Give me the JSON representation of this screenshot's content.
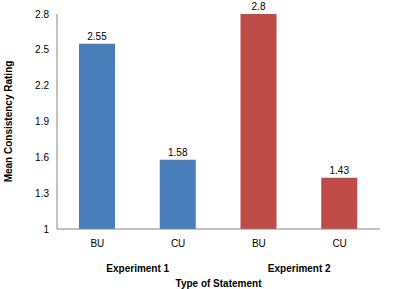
{
  "chart_data": {
    "type": "bar",
    "categories": [
      "BU",
      "CU",
      "BU",
      "CU"
    ],
    "values": [
      2.55,
      1.58,
      2.8,
      1.43
    ],
    "colors": [
      "#4a7ebb",
      "#4a7ebb",
      "#be4b48",
      "#be4b48"
    ],
    "xlabel": "Type of Statement",
    "ylabel": "Mean Consistency Rating",
    "annotations": [
      "Experiment 1",
      "Experiment 2"
    ],
    "ylim": [
      1,
      2.8
    ],
    "yticks": [
      1,
      1.3,
      1.6,
      1.9,
      2.2,
      2.5,
      2.8
    ],
    "grid": false,
    "data_labels": true
  }
}
